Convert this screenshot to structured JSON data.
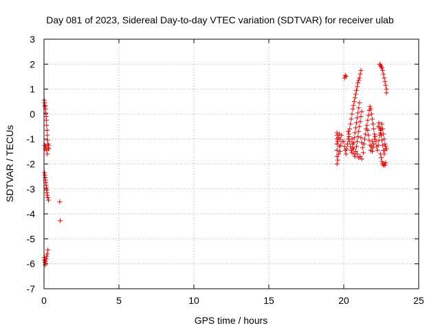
{
  "chart_data": {
    "type": "scatter",
    "title": "Day 081 of 2023, Sidereal Day-to-day VTEC variation (SDTVAR) for receiver ulab",
    "xlabel": "GPS time / hours",
    "ylabel": "SDTVAR / TECUs",
    "xlim": [
      0,
      25
    ],
    "ylim": [
      -7,
      3
    ],
    "xticks": [
      0,
      5,
      10,
      15,
      20,
      25
    ],
    "yticks": [
      -7,
      -6,
      -5,
      -4,
      -3,
      -2,
      -1,
      0,
      1,
      2,
      3
    ],
    "grid": true,
    "marker": "+",
    "color": "#e00000",
    "series": [
      {
        "name": "SDTVAR",
        "points": [
          [
            0.02,
            0.55
          ],
          [
            0.04,
            0.45
          ],
          [
            0.06,
            0.35
          ],
          [
            0.08,
            0.3
          ],
          [
            0.1,
            0.2
          ],
          [
            0.12,
            0.05
          ],
          [
            0.14,
            -0.1
          ],
          [
            0.16,
            -0.25
          ],
          [
            0.18,
            -0.45
          ],
          [
            0.2,
            -0.65
          ],
          [
            0.22,
            -0.85
          ],
          [
            0.24,
            -1.05
          ],
          [
            0.26,
            -1.2
          ],
          [
            0.28,
            -1.35
          ],
          [
            0.05,
            -1.25
          ],
          [
            0.08,
            -1.4
          ],
          [
            0.12,
            -1.3
          ],
          [
            0.18,
            -1.45
          ],
          [
            0.3,
            -1.25
          ],
          [
            0.32,
            -1.4
          ],
          [
            0.22,
            -1.6
          ],
          [
            0.04,
            -2.35
          ],
          [
            0.06,
            -2.45
          ],
          [
            0.08,
            -2.55
          ],
          [
            0.1,
            -2.65
          ],
          [
            0.12,
            -2.75
          ],
          [
            0.14,
            -2.85
          ],
          [
            0.16,
            -2.95
          ],
          [
            0.18,
            -3.05
          ],
          [
            0.2,
            -3.15
          ],
          [
            0.22,
            -3.25
          ],
          [
            0.26,
            -3.35
          ],
          [
            0.3,
            -3.45
          ],
          [
            1.05,
            -3.52
          ],
          [
            1.08,
            -4.27
          ],
          [
            0.02,
            -5.75
          ],
          [
            0.04,
            -5.85
          ],
          [
            0.06,
            -5.95
          ],
          [
            0.08,
            -6.05
          ],
          [
            0.1,
            -5.9
          ],
          [
            0.14,
            -5.8
          ],
          [
            0.18,
            -5.7
          ],
          [
            0.22,
            -5.6
          ],
          [
            0.26,
            -5.45
          ],
          [
            19.55,
            -0.75
          ],
          [
            19.55,
            -0.85
          ],
          [
            19.55,
            -1.0
          ],
          [
            19.55,
            -1.2
          ],
          [
            19.55,
            -1.45
          ],
          [
            19.55,
            -1.7
          ],
          [
            19.55,
            -2.0
          ],
          [
            19.6,
            -1.85
          ],
          [
            19.6,
            -1.1
          ],
          [
            19.65,
            -0.95
          ],
          [
            19.65,
            -1.6
          ],
          [
            19.7,
            -1.3
          ],
          [
            19.7,
            -0.8
          ],
          [
            19.75,
            -1.0
          ],
          [
            19.75,
            -1.5
          ],
          [
            19.8,
            -1.25
          ],
          [
            19.85,
            -0.85
          ],
          [
            19.9,
            -1.1
          ],
          [
            20.05,
            1.45
          ],
          [
            20.1,
            1.55
          ],
          [
            20.15,
            1.5
          ],
          [
            20.0,
            -1.1
          ],
          [
            20.05,
            -1.3
          ],
          [
            20.1,
            -1.45
          ],
          [
            20.15,
            -1.6
          ],
          [
            20.2,
            -1.4
          ],
          [
            20.25,
            -1.2
          ],
          [
            20.3,
            -1.0
          ],
          [
            20.35,
            -0.8
          ],
          [
            20.4,
            -0.6
          ],
          [
            20.45,
            -0.4
          ],
          [
            20.5,
            -0.2
          ],
          [
            20.55,
            0.0
          ],
          [
            20.6,
            0.2
          ],
          [
            20.65,
            0.35
          ],
          [
            20.7,
            0.5
          ],
          [
            20.75,
            0.65
          ],
          [
            20.8,
            0.8
          ],
          [
            20.85,
            0.95
          ],
          [
            20.9,
            1.1
          ],
          [
            20.95,
            1.25
          ],
          [
            21.0,
            1.35
          ],
          [
            21.05,
            1.45
          ],
          [
            21.1,
            1.6
          ],
          [
            21.15,
            1.75
          ],
          [
            20.3,
            -0.7
          ],
          [
            20.35,
            -0.9
          ],
          [
            20.4,
            -1.1
          ],
          [
            20.45,
            -1.3
          ],
          [
            20.5,
            -1.45
          ],
          [
            20.55,
            -1.55
          ],
          [
            20.6,
            -1.35
          ],
          [
            20.65,
            -1.15
          ],
          [
            20.7,
            -0.95
          ],
          [
            20.75,
            -0.75
          ],
          [
            20.8,
            -0.55
          ],
          [
            20.85,
            -0.35
          ],
          [
            20.9,
            -0.15
          ],
          [
            20.95,
            0.05
          ],
          [
            21.0,
            0.25
          ],
          [
            21.05,
            0.45
          ],
          [
            20.55,
            -1.0
          ],
          [
            20.6,
            -1.2
          ],
          [
            20.65,
            -1.4
          ],
          [
            20.7,
            -1.6
          ],
          [
            20.75,
            -1.7
          ],
          [
            20.8,
            -1.5
          ],
          [
            20.85,
            -1.3
          ],
          [
            20.9,
            -1.1
          ],
          [
            20.95,
            -0.9
          ],
          [
            21.0,
            -0.7
          ],
          [
            21.05,
            -0.5
          ],
          [
            21.1,
            -0.3
          ],
          [
            21.15,
            -0.1
          ],
          [
            21.2,
            0.1
          ],
          [
            20.9,
            -1.6
          ],
          [
            21.0,
            -1.75
          ],
          [
            21.1,
            -1.7
          ],
          [
            21.2,
            -1.8
          ],
          [
            21.3,
            -1.55
          ],
          [
            21.25,
            -1.35
          ],
          [
            21.2,
            -1.15
          ],
          [
            21.15,
            -0.95
          ],
          [
            21.35,
            -1.2
          ],
          [
            21.4,
            -1.0
          ],
          [
            21.45,
            -0.8
          ],
          [
            21.5,
            -0.6
          ],
          [
            21.55,
            -0.45
          ],
          [
            21.6,
            -0.65
          ],
          [
            21.65,
            -0.85
          ],
          [
            21.7,
            -1.05
          ],
          [
            21.75,
            -1.25
          ],
          [
            21.8,
            -1.45
          ],
          [
            21.85,
            -1.3
          ],
          [
            21.9,
            -1.1
          ],
          [
            21.6,
            -0.25
          ],
          [
            21.65,
            -0.05
          ],
          [
            21.7,
            0.15
          ],
          [
            21.75,
            0.3
          ],
          [
            21.8,
            0.2
          ],
          [
            21.85,
            0.0
          ],
          [
            21.9,
            -0.2
          ],
          [
            21.95,
            -0.4
          ],
          [
            22.0,
            -0.6
          ],
          [
            22.05,
            -0.8
          ],
          [
            21.9,
            -1.5
          ],
          [
            21.95,
            -1.35
          ],
          [
            22.0,
            -1.2
          ],
          [
            22.05,
            -1.0
          ],
          [
            22.1,
            -0.9
          ],
          [
            22.15,
            -1.1
          ],
          [
            22.2,
            -1.3
          ],
          [
            22.25,
            -1.45
          ],
          [
            22.3,
            -1.25
          ],
          [
            22.35,
            -1.05
          ],
          [
            22.4,
            -0.85
          ],
          [
            22.45,
            -0.65
          ],
          [
            22.5,
            -0.85
          ],
          [
            22.55,
            -1.05
          ],
          [
            22.6,
            -1.25
          ],
          [
            22.65,
            -1.45
          ],
          [
            22.7,
            -1.6
          ],
          [
            22.75,
            -1.45
          ],
          [
            22.8,
            -1.3
          ],
          [
            22.85,
            -1.4
          ],
          [
            22.3,
            -0.5
          ],
          [
            22.35,
            -0.35
          ],
          [
            22.4,
            -0.55
          ],
          [
            22.45,
            -0.75
          ],
          [
            22.5,
            -0.6
          ],
          [
            22.55,
            -0.4
          ],
          [
            22.6,
            -0.6
          ],
          [
            22.65,
            -0.8
          ],
          [
            22.7,
            -1.0
          ],
          [
            22.75,
            -1.2
          ],
          [
            22.45,
            -1.6
          ],
          [
            22.5,
            -1.75
          ],
          [
            22.55,
            -1.9
          ],
          [
            22.6,
            -2.0
          ],
          [
            22.65,
            -2.05
          ],
          [
            22.7,
            -2.0
          ],
          [
            22.75,
            -2.05
          ],
          [
            22.8,
            -1.95
          ],
          [
            22.4,
            2.0
          ],
          [
            22.45,
            1.95
          ],
          [
            22.5,
            1.9
          ],
          [
            22.55,
            1.85
          ],
          [
            22.6,
            1.75
          ],
          [
            22.65,
            1.6
          ],
          [
            22.7,
            1.45
          ],
          [
            22.75,
            1.3
          ],
          [
            22.8,
            1.15
          ],
          [
            22.85,
            1.0
          ],
          [
            22.85,
            0.85
          ]
        ]
      }
    ]
  }
}
